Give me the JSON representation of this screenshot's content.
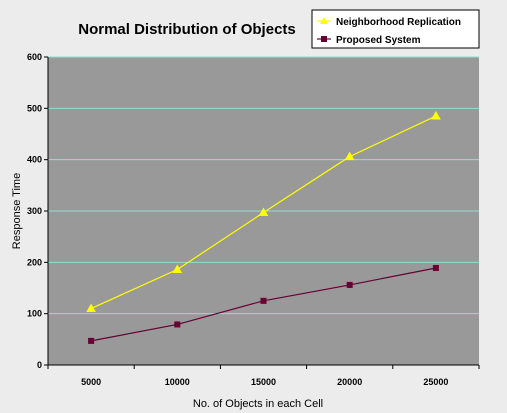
{
  "chart_data": {
    "type": "line",
    "title": "Normal Distribution of Objects",
    "xlabel": "No. of Objects in each Cell",
    "ylabel": "Response Time",
    "categories": [
      "5000",
      "10000",
      "15000",
      "20000",
      "25000"
    ],
    "ylim": [
      0,
      600
    ],
    "yticks": [
      0,
      100,
      200,
      300,
      400,
      500,
      600
    ],
    "grid": true,
    "legend_position": "top-right",
    "series": [
      {
        "name": "Neighborhood Replication",
        "values": [
          110,
          186,
          297,
          406,
          485
        ],
        "color": "#ffff00",
        "marker": "triangle"
      },
      {
        "name": "Proposed System",
        "values": [
          47,
          79,
          125,
          156,
          189
        ],
        "color": "#660033",
        "marker": "square"
      }
    ]
  },
  "colors": {
    "plot_background": "#999999",
    "gridline": "#8fe0d0",
    "page_background": "#ececec"
  }
}
